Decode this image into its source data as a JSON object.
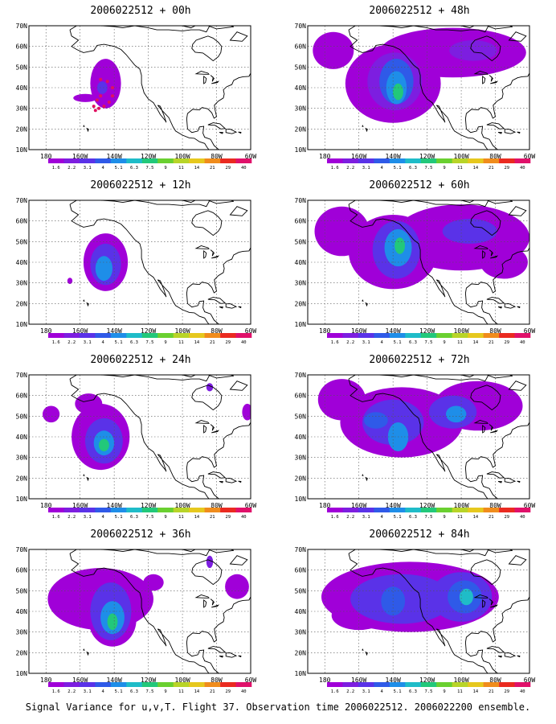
{
  "figure": {
    "caption": "Signal Variance for u,v,T. Flight 37. Observation time 2006022512. 2006022200 ensemble."
  },
  "axes": {
    "lat_labels": [
      "70N",
      "60N",
      "50N",
      "40N",
      "30N",
      "20N",
      "10N"
    ],
    "lon_labels": [
      "180",
      "160W",
      "140W",
      "120W",
      "100W",
      "80W",
      "60W"
    ]
  },
  "colorbar": {
    "labels": [
      "1.6",
      "2.2",
      "3.1",
      "4",
      "5.1",
      "6.3",
      "7.5",
      "9",
      "11",
      "14",
      "21",
      "29",
      "40"
    ],
    "colors": [
      "#a000d8",
      "#7d1ee0",
      "#5a32e8",
      "#2f5ae8",
      "#1e8ee8",
      "#1fbcc8",
      "#22c87a",
      "#6ad030",
      "#b8d428",
      "#e6c81e",
      "#f08c1c",
      "#ea2a20",
      "#e0116a"
    ]
  },
  "panels": [
    {
      "id": "p00",
      "title": "2006022512 + 00h",
      "blobs": [
        {
          "lon": -145,
          "lat": 42,
          "rlon": 9,
          "rlat": 12,
          "level": 0
        },
        {
          "lon": -157,
          "lat": 35,
          "rlon": 7,
          "rlat": 2,
          "level": 0
        },
        {
          "lon": -147,
          "lat": 40,
          "rlon": 3,
          "rlat": 3,
          "level": 2
        }
      ],
      "track": [
        [
          -148,
          44
        ],
        [
          -144,
          43
        ],
        [
          -141,
          40
        ],
        [
          -141,
          36
        ],
        [
          -143,
          33
        ],
        [
          -146,
          31
        ],
        [
          -149,
          30
        ],
        [
          -151,
          29
        ],
        [
          -152,
          31
        ],
        [
          -150,
          34
        ],
        [
          -148,
          36
        ]
      ]
    },
    {
      "id": "p48",
      "title": "2006022512 + 48h",
      "blobs": [
        {
          "lon": -140,
          "lat": 42,
          "rlon": 28,
          "rlat": 19,
          "level": 0
        },
        {
          "lon": -105,
          "lat": 57,
          "rlon": 43,
          "rlat": 12,
          "level": 0
        },
        {
          "lon": -175,
          "lat": 58,
          "rlon": 12,
          "rlat": 9,
          "level": 0
        },
        {
          "lon": -139,
          "lat": 43,
          "rlon": 16,
          "rlat": 14,
          "level": 1
        },
        {
          "lon": -138,
          "lat": 43,
          "rlon": 10,
          "rlat": 11,
          "level": 3
        },
        {
          "lon": -138,
          "lat": 40,
          "rlon": 6,
          "rlat": 8,
          "level": 4
        },
        {
          "lon": -137,
          "lat": 38,
          "rlon": 3,
          "rlat": 4,
          "level": 6
        },
        {
          "lon": -93,
          "lat": 58,
          "rlon": 14,
          "rlat": 5,
          "level": 1
        }
      ]
    },
    {
      "id": "p12",
      "title": "2006022512 + 12h",
      "blobs": [
        {
          "lon": -145,
          "lat": 40,
          "rlon": 13,
          "rlat": 14,
          "level": 0
        },
        {
          "lon": -145,
          "lat": 39,
          "rlon": 9,
          "rlat": 10,
          "level": 2
        },
        {
          "lon": -146,
          "lat": 37,
          "rlon": 5,
          "rlat": 6,
          "level": 4
        },
        {
          "lon": -166,
          "lat": 31,
          "rlon": 1.5,
          "rlat": 1.5,
          "level": 0
        }
      ]
    },
    {
      "id": "p60",
      "title": "2006022512 + 60h",
      "blobs": [
        {
          "lon": -140,
          "lat": 45,
          "rlon": 26,
          "rlat": 18,
          "level": 0
        },
        {
          "lon": -100,
          "lat": 52,
          "rlon": 40,
          "rlat": 16,
          "level": 0
        },
        {
          "lon": -170,
          "lat": 55,
          "rlon": 16,
          "rlat": 12,
          "level": 0
        },
        {
          "lon": -75,
          "lat": 40,
          "rlon": 14,
          "rlat": 8,
          "level": 0
        },
        {
          "lon": -138,
          "lat": 46,
          "rlon": 14,
          "rlat": 14,
          "level": 2
        },
        {
          "lon": -137,
          "lat": 47,
          "rlon": 8,
          "rlat": 9,
          "level": 4
        },
        {
          "lon": -136,
          "lat": 48,
          "rlon": 3,
          "rlat": 4,
          "level": 6
        },
        {
          "lon": -95,
          "lat": 55,
          "rlon": 16,
          "rlat": 6,
          "level": 2
        }
      ]
    },
    {
      "id": "p24",
      "title": "2006022512 + 24h",
      "blobs": [
        {
          "lon": -148,
          "lat": 40,
          "rlon": 17,
          "rlat": 16,
          "level": 0
        },
        {
          "lon": -155,
          "lat": 56,
          "rlon": 8,
          "rlat": 5,
          "level": 0
        },
        {
          "lon": -177,
          "lat": 51,
          "rlon": 5,
          "rlat": 4,
          "level": 0
        },
        {
          "lon": -84,
          "lat": 64,
          "rlon": 2,
          "rlat": 2,
          "level": 1
        },
        {
          "lon": -62,
          "lat": 52,
          "rlon": 3,
          "rlat": 4,
          "level": 0
        },
        {
          "lon": -146,
          "lat": 38,
          "rlon": 11,
          "rlat": 11,
          "level": 2
        },
        {
          "lon": -146,
          "lat": 37,
          "rlon": 6,
          "rlat": 6,
          "level": 4
        },
        {
          "lon": -146,
          "lat": 36,
          "rlon": 3,
          "rlat": 3,
          "level": 6
        }
      ]
    },
    {
      "id": "p72",
      "title": "2006022512 + 72h",
      "blobs": [
        {
          "lon": -135,
          "lat": 47,
          "rlon": 36,
          "rlat": 17,
          "level": 0
        },
        {
          "lon": -90,
          "lat": 55,
          "rlon": 26,
          "rlat": 12,
          "level": 0
        },
        {
          "lon": -170,
          "lat": 58,
          "rlon": 14,
          "rlat": 10,
          "level": 0
        },
        {
          "lon": -140,
          "lat": 47,
          "rlon": 18,
          "rlat": 11,
          "level": 2
        },
        {
          "lon": -105,
          "lat": 52,
          "rlon": 14,
          "rlat": 8,
          "level": 2
        },
        {
          "lon": -137,
          "lat": 40,
          "rlon": 6,
          "rlat": 7,
          "level": 4
        },
        {
          "lon": -103,
          "lat": 51,
          "rlon": 6,
          "rlat": 4,
          "level": 4
        },
        {
          "lon": -150,
          "lat": 48,
          "rlon": 7,
          "rlat": 4,
          "level": 3
        }
      ]
    },
    {
      "id": "p36",
      "title": "2006022512 + 36h",
      "blobs": [
        {
          "lon": -148,
          "lat": 46,
          "rlon": 31,
          "rlat": 15,
          "level": 0
        },
        {
          "lon": -141,
          "lat": 36,
          "rlon": 14,
          "rlat": 13,
          "level": 0
        },
        {
          "lon": -117,
          "lat": 54,
          "rlon": 6,
          "rlat": 4,
          "level": 0
        },
        {
          "lon": -68,
          "lat": 52,
          "rlon": 7,
          "rlat": 6,
          "level": 0
        },
        {
          "lon": -84,
          "lat": 64,
          "rlon": 2,
          "rlat": 3,
          "level": 1
        },
        {
          "lon": -142,
          "lat": 40,
          "rlon": 12,
          "rlat": 14,
          "level": 2
        },
        {
          "lon": -141,
          "lat": 37,
          "rlon": 7,
          "rlat": 8,
          "level": 4
        },
        {
          "lon": -141,
          "lat": 35,
          "rlon": 3,
          "rlat": 4,
          "level": 6
        }
      ]
    },
    {
      "id": "p84",
      "title": "2006022512 + 84h",
      "blobs": [
        {
          "lon": -130,
          "lat": 47,
          "rlon": 52,
          "rlat": 17,
          "level": 0
        },
        {
          "lon": -160,
          "lat": 38,
          "rlon": 16,
          "rlat": 7,
          "level": 0
        },
        {
          "lon": -135,
          "lat": 46,
          "rlon": 30,
          "rlat": 12,
          "level": 2
        },
        {
          "lon": -100,
          "lat": 47,
          "rlon": 18,
          "rlat": 12,
          "level": 2
        },
        {
          "lon": -98,
          "lat": 47,
          "rlon": 10,
          "rlat": 8,
          "level": 3
        },
        {
          "lon": -140,
          "lat": 45,
          "rlon": 7,
          "rlat": 7,
          "level": 3
        },
        {
          "lon": -97,
          "lat": 47,
          "rlon": 4,
          "rlat": 4,
          "level": 5
        }
      ]
    }
  ]
}
